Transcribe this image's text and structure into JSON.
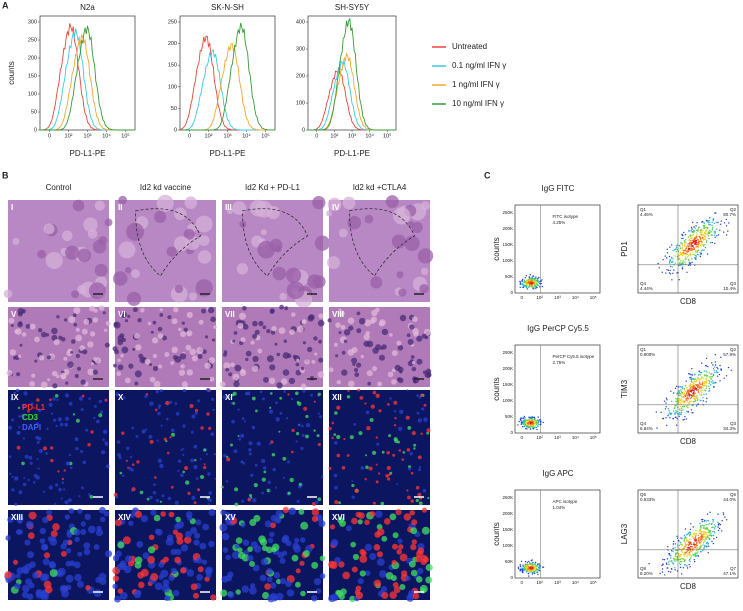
{
  "panel_a": {
    "label": "A",
    "plots": [
      {
        "title": "N2a",
        "yticks": [
          "0",
          "50",
          "100",
          "150",
          "200",
          "250",
          "300"
        ]
      },
      {
        "title": "SK-N-SH",
        "yticks": [
          "0",
          "50",
          "100",
          "150",
          "200",
          "250"
        ]
      },
      {
        "title": "SH-SY5Y",
        "yticks": [
          "0",
          "100",
          "200",
          "300",
          "400"
        ]
      }
    ],
    "x_ticks": [
      "0",
      "10²",
      "10³",
      "10⁴",
      "10⁵"
    ],
    "y_label": "counts",
    "x_label": "PD-L1-PE",
    "legend": [
      {
        "name": "Untreated",
        "color": "#e8453c"
      },
      {
        "name": "0.1 ng/ml IFN γ",
        "color": "#3cc8e0"
      },
      {
        "name": "1 ng/ml IFN γ",
        "color": "#f0a830"
      },
      {
        "name": "10 ng/ml IFN γ",
        "color": "#3a9a3a"
      }
    ]
  },
  "panel_b": {
    "label": "B",
    "columns": [
      "Control",
      "Id2 kd vaccine",
      "Id2 Kd + PD-L1",
      "Id2 kd +CTLA4"
    ],
    "row_labels": [
      [
        "I",
        "II",
        "III",
        "IV"
      ],
      [
        "V",
        "VI",
        "VII",
        "VIII"
      ],
      [
        "IX",
        "X",
        "XI",
        "XII"
      ],
      [
        "XIII",
        "XIV",
        "XV",
        "XVI"
      ]
    ],
    "stain_legend": [
      {
        "name": "PD-L1",
        "color": "#ff3030"
      },
      {
        "name": "CD3",
        "color": "#30e030"
      },
      {
        "name": "DAPI",
        "color": "#4060ff"
      }
    ]
  },
  "panel_c": {
    "label": "C",
    "rows": [
      {
        "title": "IgG FITC",
        "isotype": "FITC isotype",
        "isotype_pct": "4.25%",
        "marker": "PD1",
        "quadrants": [
          [
            "Q1",
            "4.46%"
          ],
          [
            "Q2",
            "80.7%"
          ],
          [
            "Q4",
            "4.44%"
          ],
          [
            "Q3",
            "10.4%"
          ]
        ]
      },
      {
        "title": "IgG PerCP Cy5.5",
        "isotype": "PerCP Cy5.5 isotype",
        "isotype_pct": "2.76%",
        "marker": "TIM3",
        "quadrants": [
          [
            "Q1",
            "0.900%"
          ],
          [
            "Q2",
            "57.9%"
          ],
          [
            "Q4",
            "6.84%"
          ],
          [
            "Q3",
            "34.3%"
          ]
        ]
      },
      {
        "title": "IgG APC",
        "isotype": "APC isotype",
        "isotype_pct": "1.04%",
        "marker": "LAG3",
        "quadrants": [
          [
            "Q5",
            "0.633%"
          ],
          [
            "Q6",
            "44.0%"
          ],
          [
            "Q8",
            "8.20%"
          ],
          [
            "Q7",
            "47.1%"
          ]
        ]
      }
    ],
    "left_yticks": [
      "0",
      "50K",
      "100K",
      "150K",
      "200K",
      "250K"
    ],
    "x_ticks": [
      "0",
      "10²",
      "10³",
      "10⁴",
      "10⁵"
    ],
    "y_label": "counts",
    "x_label": "CD8"
  }
}
